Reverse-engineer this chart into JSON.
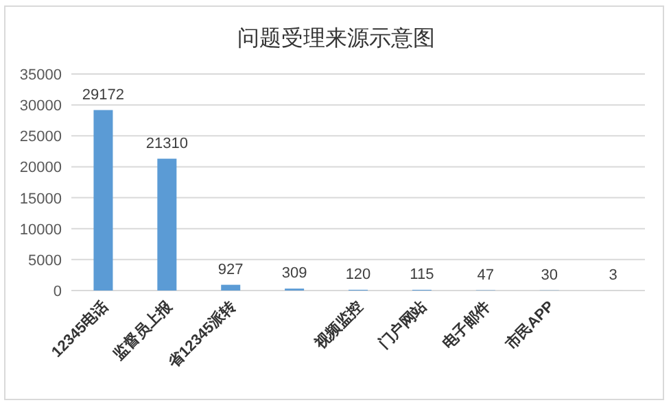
{
  "chart_data": {
    "type": "bar",
    "title": "问题受理来源示意图",
    "categories": [
      "12345电话",
      "监督员上报",
      "省12345派转",
      null,
      "视频监控",
      "门户网站",
      "电子邮件",
      "市民APP",
      null
    ],
    "values": [
      29172,
      21310,
      927,
      309,
      120,
      115,
      47,
      30,
      3
    ],
    "color": "#5b9bd5",
    "ylim": [
      0,
      35000
    ],
    "yticks": [
      0,
      5000,
      10000,
      15000,
      20000,
      25000,
      30000,
      35000
    ],
    "grid": "y",
    "data_labels": true
  }
}
